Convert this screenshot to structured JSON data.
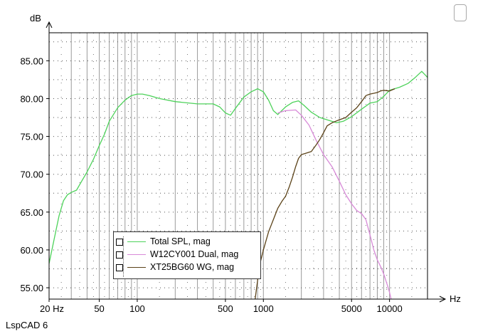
{
  "app_name": "LspCAD 6",
  "chart_data": {
    "type": "line",
    "xscale": "log",
    "xlim": [
      20,
      20000
    ],
    "ylim": [
      53.5,
      88.7
    ],
    "ylabel": "dB",
    "xlabel": "Hz",
    "grid": true,
    "legend_position": "bottom-left",
    "x_ticks": [
      {
        "value": 20,
        "label": "20 Hz"
      },
      {
        "value": 50,
        "label": "50"
      },
      {
        "value": 100,
        "label": "100"
      },
      {
        "value": 500,
        "label": "500"
      },
      {
        "value": 1000,
        "label": "1000"
      },
      {
        "value": 5000,
        "label": "5000"
      },
      {
        "value": 10000,
        "label": "10000"
      }
    ],
    "y_ticks": [
      {
        "value": 85,
        "label": "85.00"
      },
      {
        "value": 80,
        "label": "80.00"
      },
      {
        "value": 75,
        "label": "75.00"
      },
      {
        "value": 70,
        "label": "70.00"
      },
      {
        "value": 65,
        "label": "65.00"
      },
      {
        "value": 60,
        "label": "60.00"
      },
      {
        "value": 55,
        "label": "55.00"
      }
    ],
    "series": [
      {
        "name": "Total SPL, mag",
        "color": "#4dd25a",
        "points": [
          [
            20,
            58.2
          ],
          [
            22,
            61.5
          ],
          [
            24,
            64.5
          ],
          [
            26,
            66.5
          ],
          [
            28,
            67.3
          ],
          [
            30,
            67.6
          ],
          [
            33,
            67.9
          ],
          [
            36,
            69.0
          ],
          [
            40,
            70.3
          ],
          [
            45,
            72.0
          ],
          [
            50,
            73.8
          ],
          [
            55,
            75.3
          ],
          [
            60,
            77.0
          ],
          [
            70,
            78.8
          ],
          [
            80,
            79.8
          ],
          [
            90,
            80.4
          ],
          [
            100,
            80.6
          ],
          [
            110,
            80.6
          ],
          [
            125,
            80.4
          ],
          [
            150,
            80.0
          ],
          [
            200,
            79.6
          ],
          [
            300,
            79.3
          ],
          [
            400,
            79.3
          ],
          [
            450,
            78.9
          ],
          [
            500,
            78.1
          ],
          [
            550,
            77.8
          ],
          [
            600,
            78.7
          ],
          [
            700,
            80.2
          ],
          [
            800,
            80.9
          ],
          [
            900,
            81.3
          ],
          [
            1000,
            80.9
          ],
          [
            1100,
            79.8
          ],
          [
            1200,
            78.4
          ],
          [
            1300,
            77.9
          ],
          [
            1500,
            78.9
          ],
          [
            1700,
            79.5
          ],
          [
            1900,
            79.7
          ],
          [
            2100,
            79.1
          ],
          [
            2400,
            78.2
          ],
          [
            2800,
            77.5
          ],
          [
            3200,
            77.2
          ],
          [
            3800,
            76.8
          ],
          [
            4300,
            77.0
          ],
          [
            5000,
            77.6
          ],
          [
            6000,
            78.6
          ],
          [
            7000,
            79.4
          ],
          [
            8000,
            79.6
          ],
          [
            9000,
            80.3
          ],
          [
            10000,
            81.1
          ],
          [
            12000,
            81.5
          ],
          [
            14000,
            82.0
          ],
          [
            16000,
            82.8
          ],
          [
            18000,
            83.6
          ],
          [
            19000,
            83.2
          ],
          [
            20000,
            82.8
          ]
        ]
      },
      {
        "name": "W12CY001 Dual, mag",
        "color": "#d88ad8",
        "points": [
          [
            1300,
            78.1
          ],
          [
            1500,
            78.4
          ],
          [
            1800,
            78.5
          ],
          [
            2000,
            77.8
          ],
          [
            2300,
            76.5
          ],
          [
            2600,
            74.6
          ],
          [
            3000,
            72.6
          ],
          [
            3500,
            71.0
          ],
          [
            4000,
            69.1
          ],
          [
            4500,
            67.3
          ],
          [
            5000,
            66.1
          ],
          [
            5500,
            65.2
          ],
          [
            6000,
            64.8
          ],
          [
            6500,
            64.0
          ],
          [
            7000,
            62.0
          ],
          [
            7500,
            60.0
          ],
          [
            8000,
            58.7
          ],
          [
            8500,
            57.8
          ],
          [
            9000,
            56.8
          ],
          [
            9500,
            55.6
          ],
          [
            10000,
            54.4
          ],
          [
            10300,
            53.5
          ]
        ]
      },
      {
        "name": "XT25BG60 WG, mag",
        "color": "#5b4218",
        "points": [
          [
            860,
            53.5
          ],
          [
            900,
            56.0
          ],
          [
            950,
            58.5
          ],
          [
            1000,
            60.0
          ],
          [
            1100,
            62.4
          ],
          [
            1200,
            64.0
          ],
          [
            1300,
            65.5
          ],
          [
            1400,
            66.4
          ],
          [
            1500,
            67.1
          ],
          [
            1600,
            68.3
          ],
          [
            1700,
            69.6
          ],
          [
            1800,
            71.0
          ],
          [
            1900,
            72.1
          ],
          [
            2000,
            72.6
          ],
          [
            2200,
            72.8
          ],
          [
            2400,
            73.0
          ],
          [
            2600,
            73.8
          ],
          [
            2800,
            74.6
          ],
          [
            3000,
            75.5
          ],
          [
            3200,
            76.4
          ],
          [
            3500,
            76.8
          ],
          [
            4000,
            77.2
          ],
          [
            4500,
            77.5
          ],
          [
            5000,
            78.2
          ],
          [
            5500,
            78.8
          ],
          [
            6000,
            79.6
          ],
          [
            6500,
            80.4
          ],
          [
            7000,
            80.6
          ],
          [
            7500,
            80.7
          ],
          [
            8000,
            80.8
          ],
          [
            8500,
            81.0
          ],
          [
            9000,
            81.1
          ],
          [
            10000,
            81.0
          ],
          [
            11000,
            81.3
          ]
        ]
      }
    ]
  }
}
